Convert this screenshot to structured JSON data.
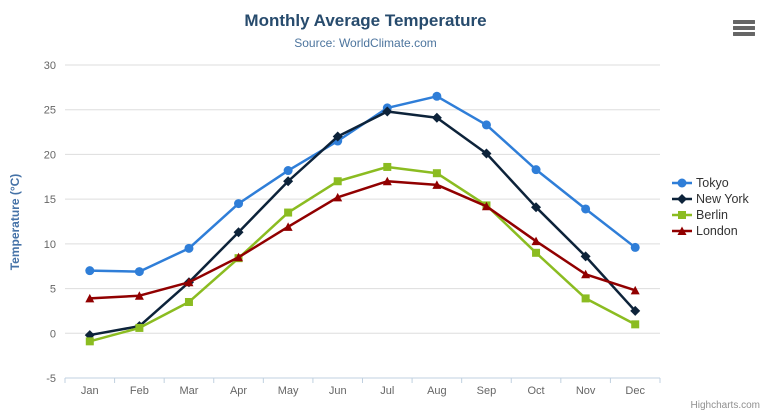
{
  "header": {
    "title": "Monthly Average Temperature",
    "subtitle": "Source: WorldClimate.com"
  },
  "credits": {
    "label": "Highcharts.com"
  },
  "menu": {
    "icon": "hamburger-icon"
  },
  "colors": {
    "title": "#274b6d",
    "subtitle": "#4d759e",
    "axis_title": "#4572a7",
    "tick_label": "#666666",
    "axis_line": "#c0d0e0",
    "gridline": "#dddddd",
    "legend_text": "#333333",
    "credits": "#909090",
    "menu_icon": "#666666"
  },
  "chart_data": {
    "type": "line",
    "title": "Monthly Average Temperature",
    "subtitle": "Source: WorldClimate.com",
    "categories": [
      "Jan",
      "Feb",
      "Mar",
      "Apr",
      "May",
      "Jun",
      "Jul",
      "Aug",
      "Sep",
      "Oct",
      "Nov",
      "Dec"
    ],
    "series": [
      {
        "name": "Tokyo",
        "color": "#2f7ed8",
        "marker": "circle",
        "values": [
          7.0,
          6.9,
          9.5,
          14.5,
          18.2,
          21.5,
          25.2,
          26.5,
          23.3,
          18.3,
          13.9,
          9.6
        ]
      },
      {
        "name": "New York",
        "color": "#0d233a",
        "marker": "diamond",
        "values": [
          -0.2,
          0.8,
          5.7,
          11.3,
          17.0,
          22.0,
          24.8,
          24.1,
          20.1,
          14.1,
          8.6,
          2.5
        ]
      },
      {
        "name": "Berlin",
        "color": "#8bbc21",
        "marker": "square",
        "values": [
          -0.9,
          0.6,
          3.5,
          8.4,
          13.5,
          17.0,
          18.6,
          17.9,
          14.3,
          9.0,
          3.9,
          1.0
        ]
      },
      {
        "name": "London",
        "color": "#910000",
        "marker": "triangle",
        "values": [
          3.9,
          4.2,
          5.7,
          8.5,
          11.9,
          15.2,
          17.0,
          16.6,
          14.2,
          10.3,
          6.6,
          4.8
        ]
      }
    ],
    "xlabel": "",
    "ylabel": "Temperature (°C)",
    "ylim": [
      -5,
      30
    ],
    "yticks": [
      -5,
      0,
      5,
      10,
      15,
      20,
      25,
      30
    ],
    "grid": true,
    "legend_position": "right"
  }
}
